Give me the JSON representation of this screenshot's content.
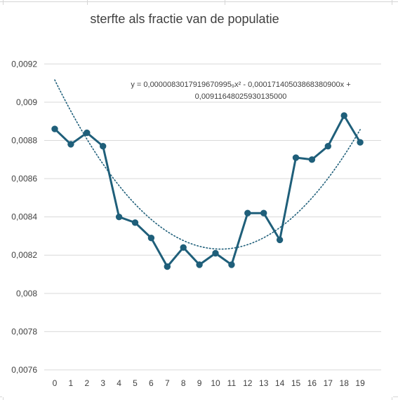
{
  "chart_data": {
    "type": "line",
    "title": "sterfte als fractie van de populatie",
    "xlabel": "",
    "ylabel": "",
    "x": [
      0,
      1,
      2,
      3,
      4,
      5,
      6,
      7,
      8,
      9,
      10,
      11,
      12,
      13,
      14,
      15,
      16,
      17,
      18,
      19
    ],
    "series": [
      {
        "values": [
          0.00886,
          0.00878,
          0.00884,
          0.00877,
          0.0084,
          0.00837,
          0.00829,
          0.00814,
          0.00824,
          0.00815,
          0.00821,
          0.00815,
          0.00842,
          0.00842,
          0.00828,
          0.00871,
          0.0087,
          0.00877,
          0.00893,
          0.00879
        ],
        "color": "#1f5f7a",
        "markers": true
      }
    ],
    "trendline": {
      "type": "polynomial",
      "order": 2,
      "equation_line1": "y = 0,0000083017919670995₉x² - 0,00017140503868380900x +",
      "equation_line2": "0,00911648025930135000",
      "a": 8.3017919670995e-06,
      "b": -0.000171405038683809,
      "c": 0.00911648025930135,
      "color": "#1f5f7a",
      "style": "dotted"
    },
    "ylim": [
      0.0076,
      0.0093
    ],
    "y_ticks": [
      "0,0076",
      "0,0078",
      "0,008",
      "0,0082",
      "0,0084",
      "0,0086",
      "0,0088",
      "0,009",
      "0,0092"
    ],
    "x_ticks": [
      "0",
      "1",
      "2",
      "3",
      "4",
      "5",
      "6",
      "7",
      "8",
      "9",
      "10",
      "11",
      "12",
      "13",
      "14",
      "15",
      "16",
      "17",
      "18",
      "19"
    ],
    "grid": true,
    "legend": "none"
  }
}
